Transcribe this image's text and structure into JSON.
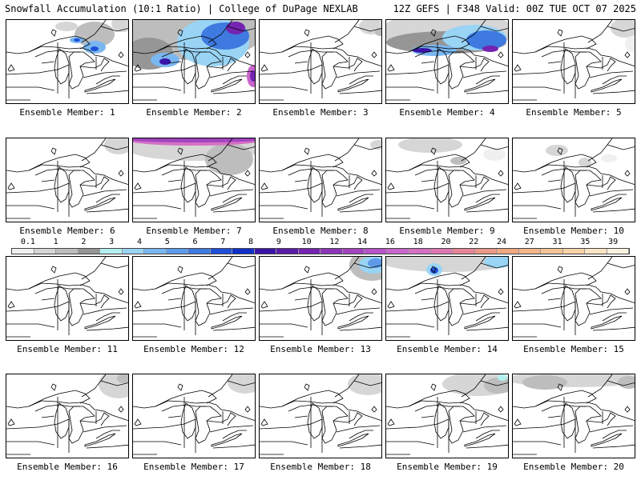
{
  "header": {
    "title_left": "Snowfall Accumulation (10:1 Ratio) | College of DuPage NEXLAB",
    "title_right": "12Z GEFS | F348 Valid: 00Z TUE OCT 07 2025"
  },
  "colorbar": {
    "labels": [
      "0.1",
      "1",
      "2",
      "3",
      "4",
      "5",
      "6",
      "7",
      "8",
      "9",
      "10",
      "12",
      "14",
      "16",
      "18",
      "20",
      "22",
      "24",
      "27",
      "31",
      "35",
      "39"
    ],
    "colors": [
      "#f0f0f0",
      "#d6d6d6",
      "#bdbdbd",
      "#969696",
      "#b4f0f0",
      "#9ad4f5",
      "#7ab7f0",
      "#5e9ae8",
      "#3f7ae0",
      "#2050d8",
      "#1030c8",
      "#3a14a8",
      "#5a1aa8",
      "#7424b0",
      "#8c34b8",
      "#a244c0",
      "#b654c8",
      "#c866cc",
      "#d470c4",
      "#de78b4",
      "#e68698",
      "#ea9888",
      "#eea882",
      "#f2b68a",
      "#f4c496",
      "#f8d4a8",
      "#fbe4c4",
      "#fdf2e2"
    ]
  },
  "panels": [
    {
      "label": "Ensemble Member: 1",
      "snow": [
        {
          "x": 75,
          "y": 8,
          "rx": 14,
          "ry": 6,
          "c": "#d6d6d6"
        },
        {
          "x": 110,
          "y": 18,
          "rx": 25,
          "ry": 16,
          "c": "#bdbdbd"
        },
        {
          "x": 110,
          "y": 34,
          "rx": 14,
          "ry": 8,
          "c": "#7ab7f0"
        },
        {
          "x": 110,
          "y": 36,
          "rx": 5,
          "ry": 3,
          "c": "#2050d8"
        },
        {
          "x": 88,
          "y": 25,
          "rx": 9,
          "ry": 4,
          "c": "#7ab7f0"
        },
        {
          "x": 88,
          "y": 25,
          "rx": 4,
          "ry": 2,
          "c": "#2050d8"
        },
        {
          "x": 145,
          "y": 5,
          "rx": 14,
          "ry": 10,
          "c": "#d6d6d6"
        }
      ]
    },
    {
      "label": "Ensemble Member: 2",
      "snow": [
        {
          "x": 77,
          "y": 16,
          "rx": 85,
          "ry": 34,
          "c": "#bdbdbd"
        },
        {
          "x": 20,
          "y": 42,
          "rx": 30,
          "ry": 20,
          "c": "#969696"
        },
        {
          "x": 100,
          "y": 28,
          "rx": 45,
          "ry": 30,
          "c": "#9ad4f5"
        },
        {
          "x": 115,
          "y": 20,
          "rx": 30,
          "ry": 17,
          "c": "#3f7ae0"
        },
        {
          "x": 128,
          "y": 10,
          "rx": 12,
          "ry": 8,
          "c": "#7424b0"
        },
        {
          "x": 40,
          "y": 50,
          "rx": 18,
          "ry": 9,
          "c": "#7ab7f0"
        },
        {
          "x": 40,
          "y": 52,
          "rx": 7,
          "ry": 4,
          "c": "#3a14a8"
        },
        {
          "x": 150,
          "y": 70,
          "rx": 8,
          "ry": 14,
          "c": "#c866cc"
        },
        {
          "x": 150,
          "y": 70,
          "rx": 4,
          "ry": 7,
          "c": "#7424b0"
        }
      ]
    },
    {
      "label": "Ensemble Member: 3",
      "snow": [
        {
          "x": 140,
          "y": 8,
          "rx": 16,
          "ry": 10,
          "c": "#d6d6d6"
        },
        {
          "x": 150,
          "y": 15,
          "rx": 6,
          "ry": 5,
          "c": "#bdbdbd"
        }
      ]
    },
    {
      "label": "Ensemble Member: 4",
      "snow": [
        {
          "x": 77,
          "y": 14,
          "rx": 85,
          "ry": 24,
          "c": "#d6d6d6"
        },
        {
          "x": 75,
          "y": 28,
          "rx": 75,
          "ry": 14,
          "c": "#969696"
        },
        {
          "x": 110,
          "y": 22,
          "rx": 40,
          "ry": 16,
          "c": "#9ad4f5"
        },
        {
          "x": 60,
          "y": 38,
          "rx": 28,
          "ry": 7,
          "c": "#7ab7f0"
        },
        {
          "x": 45,
          "y": 38,
          "rx": 12,
          "ry": 3,
          "c": "#3a14a8"
        },
        {
          "x": 125,
          "y": 25,
          "rx": 25,
          "ry": 12,
          "c": "#3f7ae0"
        },
        {
          "x": 130,
          "y": 36,
          "rx": 10,
          "ry": 4,
          "c": "#7424b0"
        }
      ]
    },
    {
      "label": "Ensemble Member: 5",
      "snow": [
        {
          "x": 140,
          "y": 10,
          "rx": 18,
          "ry": 12,
          "c": "#d6d6d6"
        },
        {
          "x": 148,
          "y": 30,
          "rx": 8,
          "ry": 10,
          "c": "#f0f0f0"
        }
      ]
    },
    {
      "label": "Ensemble Member: 6",
      "snow": [
        {
          "x": 140,
          "y": 8,
          "rx": 18,
          "ry": 12,
          "c": "#d6d6d6"
        }
      ]
    },
    {
      "label": "Ensemble Member: 7",
      "snow": [
        {
          "x": 77,
          "y": 12,
          "rx": 85,
          "ry": 16,
          "c": "#d6d6d6"
        },
        {
          "x": 120,
          "y": 26,
          "rx": 30,
          "ry": 20,
          "c": "#bdbdbd"
        },
        {
          "x": 77,
          "y": 2,
          "rx": 85,
          "ry": 7,
          "c": "#d470c4"
        },
        {
          "x": 77,
          "y": 1,
          "rx": 85,
          "ry": 4,
          "c": "#a244c0"
        }
      ]
    },
    {
      "label": "Ensemble Member: 8",
      "snow": [
        {
          "x": 148,
          "y": 8,
          "rx": 10,
          "ry": 6,
          "c": "#d6d6d6"
        }
      ]
    },
    {
      "label": "Ensemble Member: 9",
      "snow": [
        {
          "x": 55,
          "y": 8,
          "rx": 40,
          "ry": 10,
          "c": "#d6d6d6"
        },
        {
          "x": 90,
          "y": 28,
          "rx": 10,
          "ry": 5,
          "c": "#bdbdbd"
        },
        {
          "x": 135,
          "y": 20,
          "rx": 14,
          "ry": 8,
          "c": "#f0f0f0"
        }
      ]
    },
    {
      "label": "Ensemble Member: 10",
      "snow": [
        {
          "x": 55,
          "y": 15,
          "rx": 14,
          "ry": 7,
          "c": "#d6d6d6"
        },
        {
          "x": 90,
          "y": 30,
          "rx": 8,
          "ry": 6,
          "c": "#d6d6d6"
        },
        {
          "x": 120,
          "y": 25,
          "rx": 10,
          "ry": 5,
          "c": "#f0f0f0"
        }
      ]
    },
    {
      "label": "Ensemble Member: 11",
      "snow": []
    },
    {
      "label": "Ensemble Member: 12",
      "snow": []
    },
    {
      "label": "Ensemble Member: 13",
      "snow": [
        {
          "x": 140,
          "y": 10,
          "rx": 28,
          "ry": 20,
          "c": "#bdbdbd"
        },
        {
          "x": 142,
          "y": 10,
          "rx": 18,
          "ry": 11,
          "c": "#9ad4f5"
        },
        {
          "x": 145,
          "y": 8,
          "rx": 10,
          "ry": 6,
          "c": "#5e9ae8"
        }
      ]
    },
    {
      "label": "Ensemble Member: 14",
      "snow": [
        {
          "x": 77,
          "y": 5,
          "rx": 85,
          "ry": 14,
          "c": "#d6d6d6"
        },
        {
          "x": 140,
          "y": 6,
          "rx": 18,
          "ry": 8,
          "c": "#9ad4f5"
        },
        {
          "x": 60,
          "y": 16,
          "rx": 10,
          "ry": 8,
          "c": "#9ad4f5"
        },
        {
          "x": 60,
          "y": 17,
          "rx": 5,
          "ry": 4,
          "c": "#2050d8"
        }
      ]
    },
    {
      "label": "Ensemble Member: 15",
      "snow": []
    },
    {
      "label": "Ensemble Member: 16",
      "snow": [
        {
          "x": 140,
          "y": 12,
          "rx": 25,
          "ry": 18,
          "c": "#d6d6d6"
        },
        {
          "x": 148,
          "y": 5,
          "rx": 10,
          "ry": 6,
          "c": "#bdbdbd"
        }
      ]
    },
    {
      "label": "Ensemble Member: 17",
      "snow": [
        {
          "x": 140,
          "y": 10,
          "rx": 22,
          "ry": 14,
          "c": "#d6d6d6"
        }
      ]
    },
    {
      "label": "Ensemble Member: 18",
      "snow": [
        {
          "x": 135,
          "y": 12,
          "rx": 25,
          "ry": 14,
          "c": "#d6d6d6"
        }
      ]
    },
    {
      "label": "Ensemble Member: 19",
      "snow": [
        {
          "x": 115,
          "y": 12,
          "rx": 45,
          "ry": 15,
          "c": "#d6d6d6"
        },
        {
          "x": 140,
          "y": 14,
          "rx": 18,
          "ry": 10,
          "c": "#bdbdbd"
        },
        {
          "x": 145,
          "y": 4,
          "rx": 6,
          "ry": 4,
          "c": "#b4f0f0"
        }
      ]
    },
    {
      "label": "Ensemble Member: 20",
      "snow": [
        {
          "x": 77,
          "y": 6,
          "rx": 85,
          "ry": 10,
          "c": "#d6d6d6"
        },
        {
          "x": 40,
          "y": 10,
          "rx": 28,
          "ry": 9,
          "c": "#bdbdbd"
        },
        {
          "x": 145,
          "y": 10,
          "rx": 14,
          "ry": 8,
          "c": "#bdbdbd"
        }
      ]
    }
  ]
}
